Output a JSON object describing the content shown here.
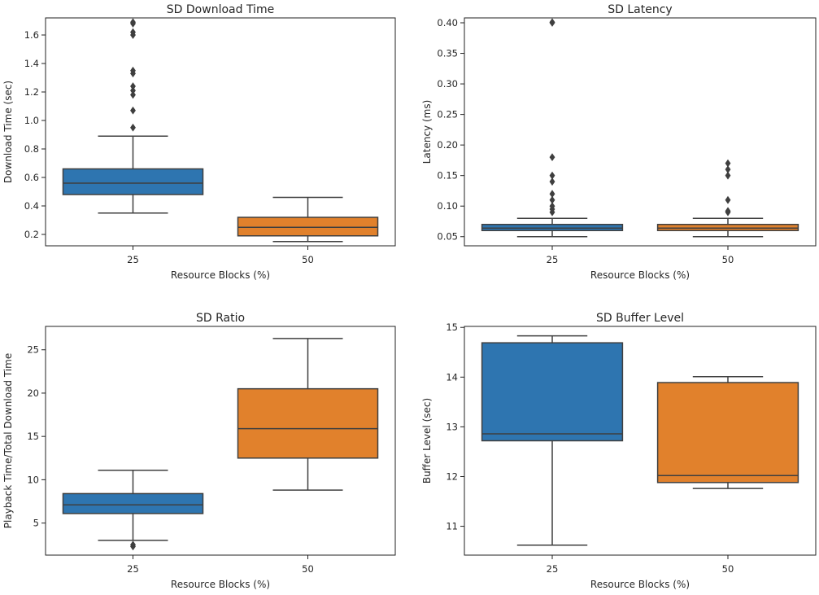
{
  "colors": {
    "blue": "#2e75b0",
    "orange": "#e1812c",
    "line": "#3f3f3f"
  },
  "chart_data": [
    {
      "type": "box",
      "title": "SD Download Time",
      "xlabel": "Resource Blocks (%)",
      "ylabel": "Download Time (sec)",
      "ylim": [
        0.12,
        1.72
      ],
      "yticks": [
        0.2,
        0.4,
        0.6,
        0.8,
        1.0,
        1.2,
        1.4,
        1.6
      ],
      "ytick_labels": [
        "0.2",
        "0.4",
        "0.6",
        "0.8",
        "1.0",
        "1.2",
        "1.4",
        "1.6"
      ],
      "categories": [
        "25",
        "50"
      ],
      "boxes": [
        {
          "category": "25",
          "whislo": 0.35,
          "q1": 0.48,
          "med": 0.56,
          "q3": 0.66,
          "whishi": 0.89,
          "fliers": [
            0.95,
            1.07,
            1.18,
            1.21,
            1.24,
            1.33,
            1.35,
            1.6,
            1.62,
            1.68,
            1.69
          ]
        },
        {
          "category": "50",
          "whislo": 0.15,
          "q1": 0.19,
          "med": 0.25,
          "q3": 0.32,
          "whishi": 0.46,
          "fliers": []
        }
      ]
    },
    {
      "type": "box",
      "title": "SD Latency",
      "xlabel": "Resource Blocks (%)",
      "ylabel": "Latency (ms)",
      "ylim": [
        0.035,
        0.408
      ],
      "yticks": [
        0.05,
        0.1,
        0.15,
        0.2,
        0.25,
        0.3,
        0.35,
        0.4
      ],
      "ytick_labels": [
        "0.05",
        "0.10",
        "0.15",
        "0.20",
        "0.25",
        "0.30",
        "0.35",
        "0.40"
      ],
      "categories": [
        "25",
        "50"
      ],
      "boxes": [
        {
          "category": "25",
          "whislo": 0.05,
          "q1": 0.06,
          "med": 0.064,
          "q3": 0.07,
          "whishi": 0.08,
          "fliers": [
            0.09,
            0.095,
            0.1,
            0.11,
            0.12,
            0.14,
            0.15,
            0.18,
            0.4,
            0.401
          ]
        },
        {
          "category": "50",
          "whislo": 0.05,
          "q1": 0.06,
          "med": 0.064,
          "q3": 0.07,
          "whishi": 0.08,
          "fliers": [
            0.09,
            0.092,
            0.11,
            0.15,
            0.16,
            0.17
          ]
        }
      ]
    },
    {
      "type": "box",
      "title": "SD Ratio",
      "xlabel": "Resource Blocks (%)",
      "ylabel": "Playback Time/Total Download Time",
      "ylim": [
        1.3,
        27.7
      ],
      "yticks": [
        5,
        10,
        15,
        20,
        25
      ],
      "ytick_labels": [
        "5",
        "10",
        "15",
        "20",
        "25"
      ],
      "categories": [
        "25",
        "50"
      ],
      "boxes": [
        {
          "category": "25",
          "whislo": 3.0,
          "q1": 6.1,
          "med": 7.1,
          "q3": 8.4,
          "whishi": 11.1,
          "fliers": [
            2.3,
            2.5
          ]
        },
        {
          "category": "50",
          "whislo": 8.8,
          "q1": 12.5,
          "med": 15.9,
          "q3": 20.5,
          "whishi": 26.3,
          "fliers": []
        }
      ]
    },
    {
      "type": "box",
      "title": "SD Buffer Level",
      "xlabel": "Resource Blocks (%)",
      "ylabel": "Buffer Level (sec)",
      "ylim": [
        10.42,
        15.02
      ],
      "yticks": [
        11,
        12,
        13,
        14,
        15
      ],
      "ytick_labels": [
        "11",
        "12",
        "13",
        "14",
        "15"
      ],
      "categories": [
        "25",
        "50"
      ],
      "boxes": [
        {
          "category": "25",
          "whislo": 10.62,
          "q1": 12.72,
          "med": 12.86,
          "q3": 14.69,
          "whishi": 14.83,
          "fliers": []
        },
        {
          "category": "50",
          "whislo": 11.76,
          "q1": 11.88,
          "med": 12.02,
          "q3": 13.89,
          "whishi": 14.01,
          "fliers": []
        }
      ]
    }
  ]
}
